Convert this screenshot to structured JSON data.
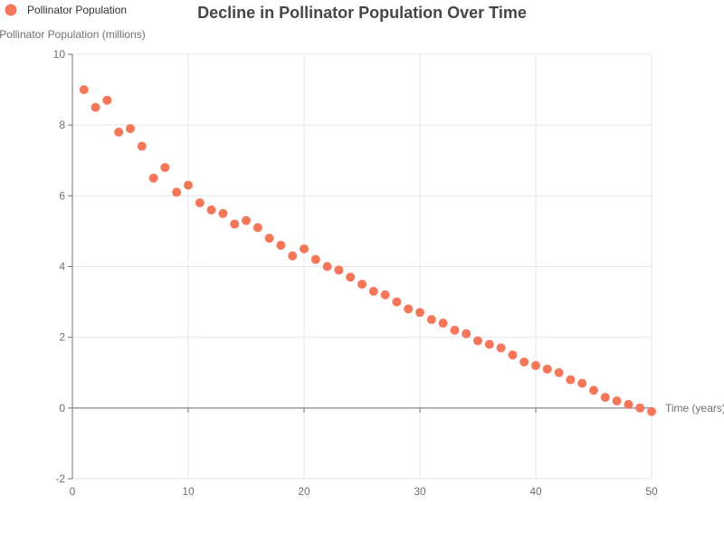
{
  "chart_data": {
    "type": "scatter",
    "title": "Decline in Pollinator Population Over Time",
    "xlabel": "Time (years)",
    "ylabel": "Pollinator Population (millions)",
    "xlim": [
      0,
      50
    ],
    "ylim": [
      -2,
      10
    ],
    "x_ticks": [
      0,
      10,
      20,
      30,
      40,
      50
    ],
    "y_ticks": [
      -2,
      0,
      2,
      4,
      6,
      8,
      10
    ],
    "grid": true,
    "legend_position": "top-left",
    "color": "#f4775a",
    "series": [
      {
        "name": "Pollinator Population",
        "x": [
          1,
          2,
          3,
          4,
          5,
          6,
          7,
          8,
          9,
          10,
          11,
          12,
          13,
          14,
          15,
          16,
          17,
          18,
          19,
          20,
          21,
          22,
          23,
          24,
          25,
          26,
          27,
          28,
          29,
          30,
          31,
          32,
          33,
          34,
          35,
          36,
          37,
          38,
          39,
          40,
          41,
          42,
          43,
          44,
          45,
          46,
          47,
          48,
          49,
          50
        ],
        "y": [
          9.0,
          8.5,
          8.7,
          7.8,
          7.9,
          7.4,
          6.5,
          6.8,
          6.1,
          6.3,
          5.8,
          5.6,
          5.5,
          5.2,
          5.3,
          5.1,
          4.8,
          4.6,
          4.3,
          4.5,
          4.2,
          4.0,
          3.9,
          3.7,
          3.5,
          3.3,
          3.2,
          3.0,
          2.8,
          2.7,
          2.5,
          2.4,
          2.2,
          2.1,
          1.9,
          1.8,
          1.7,
          1.5,
          1.3,
          1.2,
          1.1,
          1.0,
          0.8,
          0.7,
          0.5,
          0.3,
          0.2,
          0.1,
          0.0,
          -0.1
        ]
      }
    ]
  }
}
